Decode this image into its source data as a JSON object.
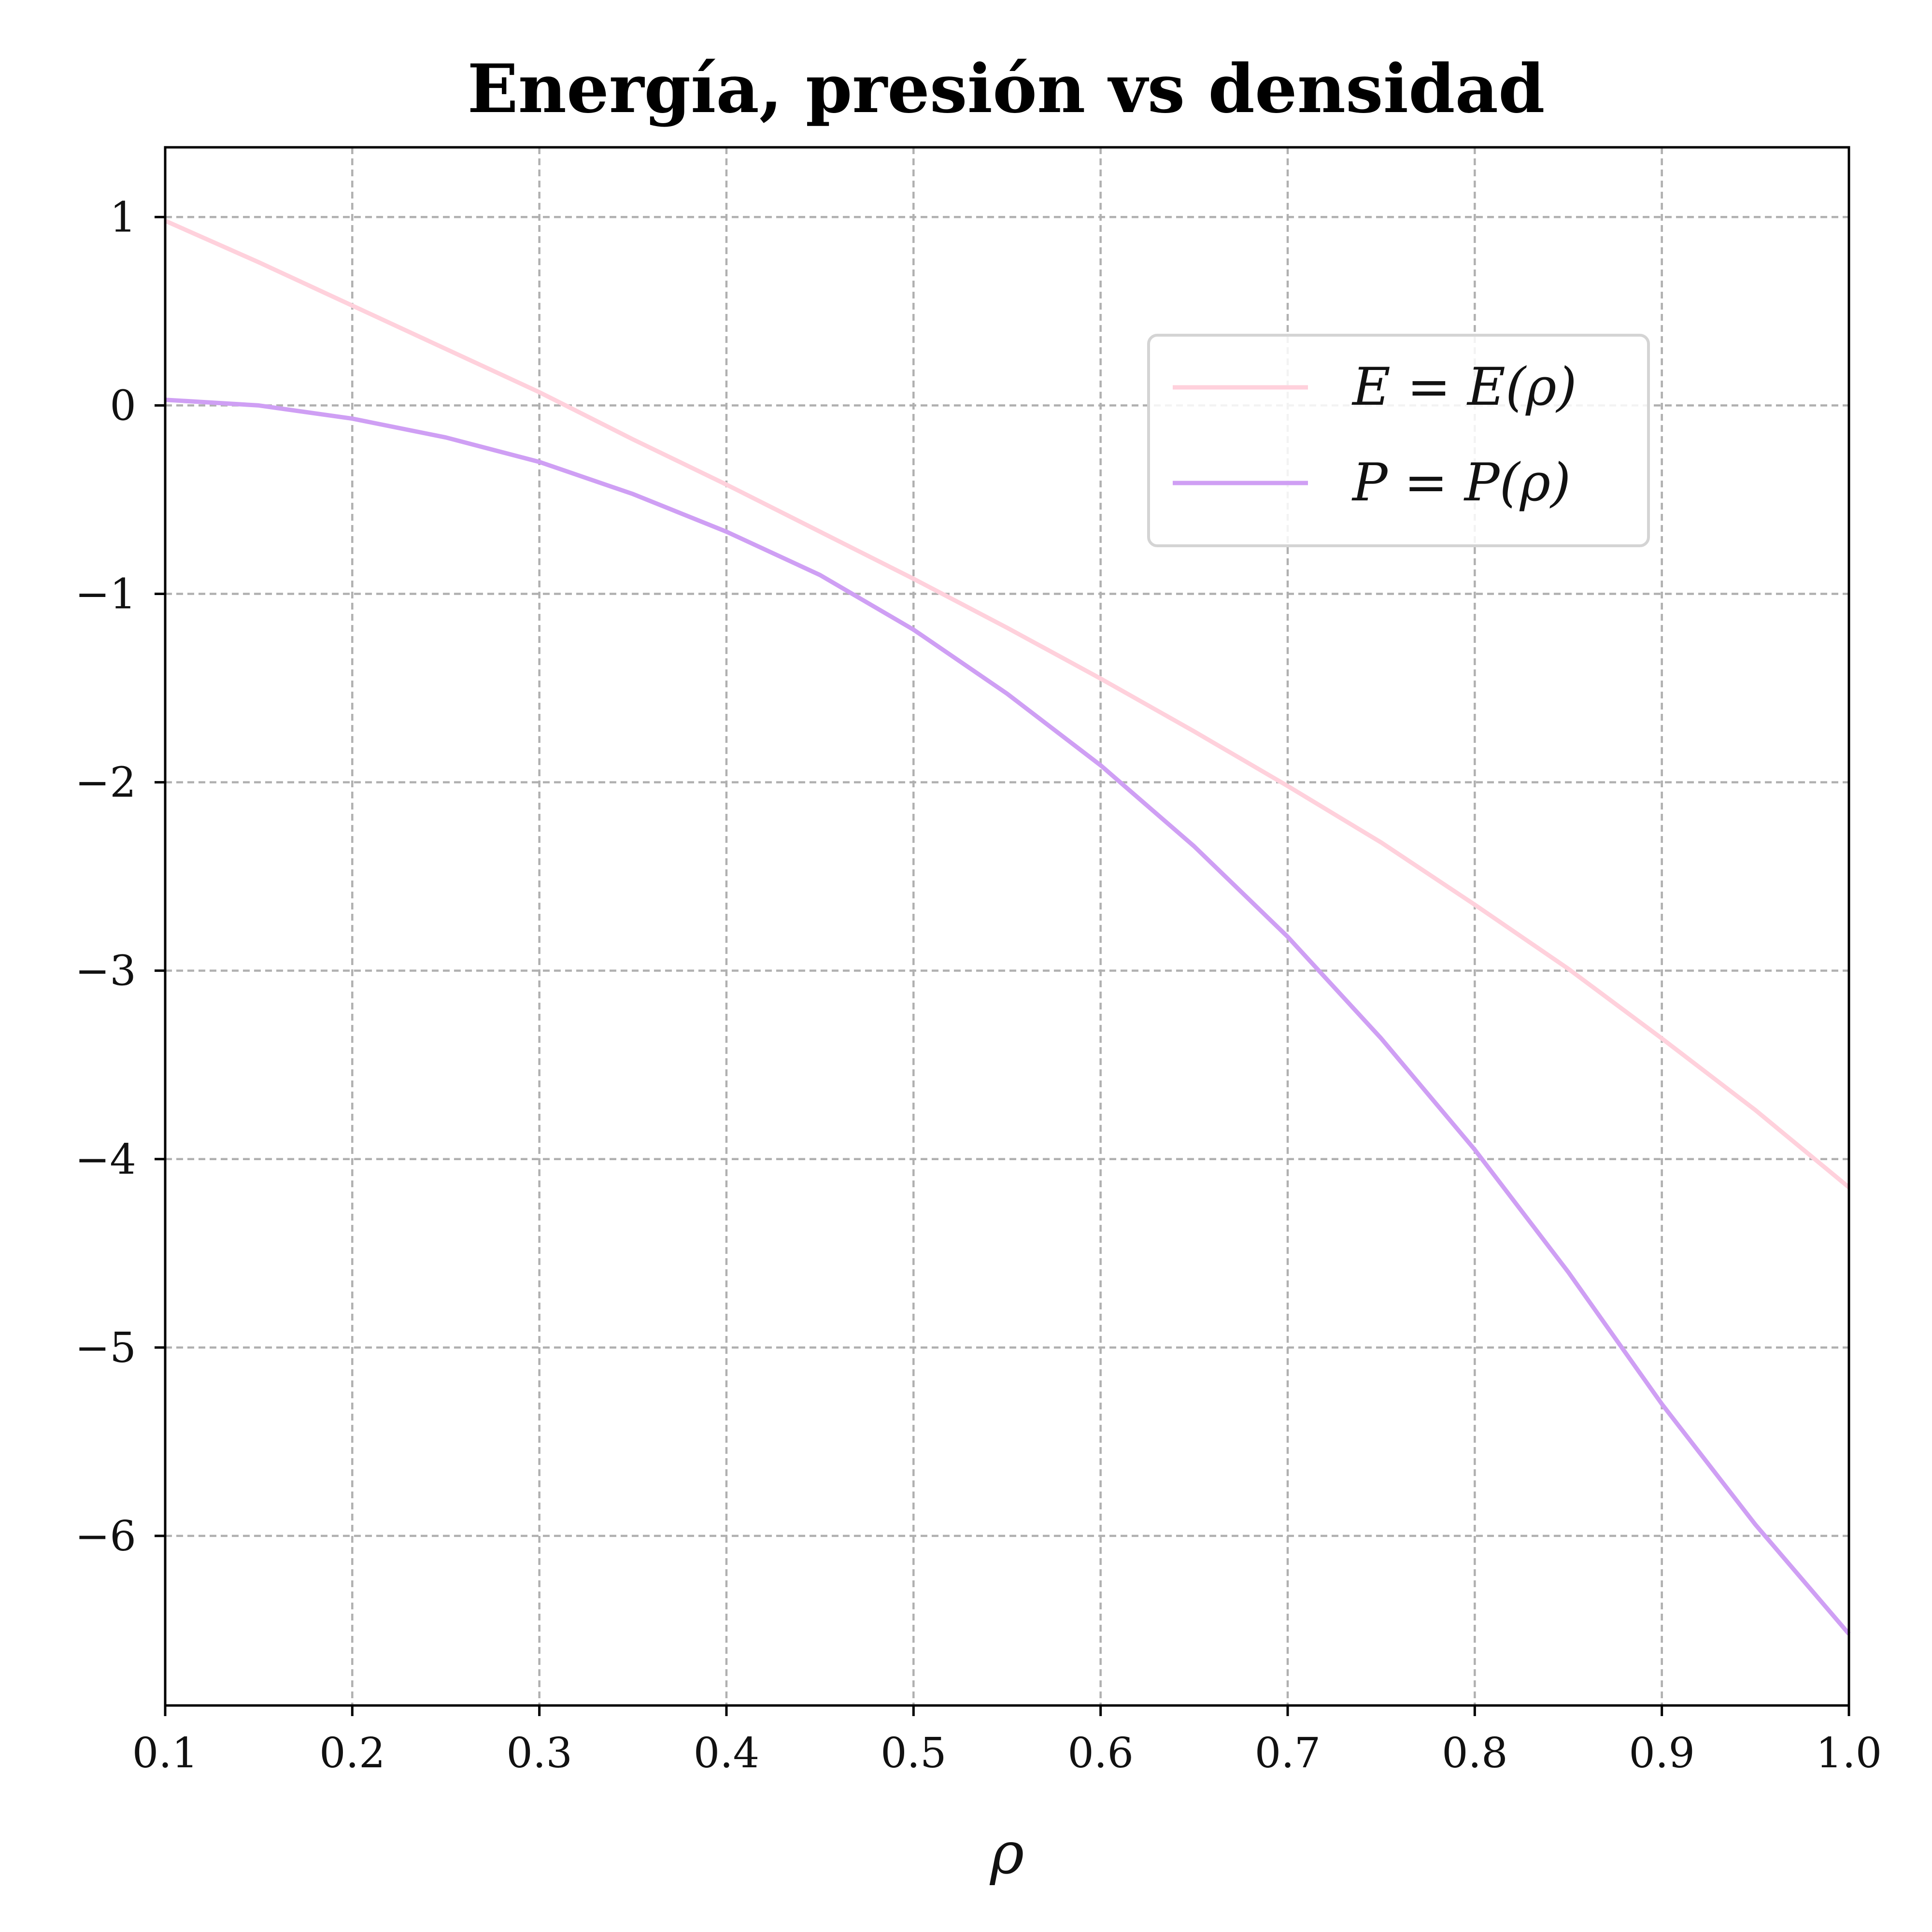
{
  "chart_data": {
    "type": "line",
    "title": "Energía, presión vs densidad",
    "xlabel": "ρ",
    "ylabel": "",
    "xlim": [
      0.1,
      1.0
    ],
    "ylim": [
      -6.9,
      1.37
    ],
    "xticks": [
      0.1,
      0.2,
      0.3,
      0.4,
      0.5,
      0.6,
      0.7,
      0.8,
      0.9,
      1.0
    ],
    "xtick_labels": [
      "0.1",
      "0.2",
      "0.3",
      "0.4",
      "0.5",
      "0.6",
      "0.7",
      "0.8",
      "0.9",
      "1.0"
    ],
    "yticks": [
      1,
      0,
      -1,
      -2,
      -3,
      -4,
      -5,
      -6
    ],
    "ytick_labels": [
      "1",
      "0",
      "−1",
      "−2",
      "−3",
      "−4",
      "−5",
      "−6"
    ],
    "grid": true,
    "legend_position": "upper-right",
    "series": [
      {
        "name": "E = E(ρ)",
        "color": "#ffd1dc",
        "x": [
          0.1,
          0.15,
          0.2,
          0.25,
          0.3,
          0.35,
          0.4,
          0.45,
          0.5,
          0.55,
          0.6,
          0.65,
          0.7,
          0.75,
          0.8,
          0.85,
          0.9,
          0.95,
          1.0
        ],
        "y": [
          0.98,
          0.76,
          0.53,
          0.3,
          0.07,
          -0.18,
          -0.42,
          -0.67,
          -0.92,
          -1.18,
          -1.45,
          -1.73,
          -2.02,
          -2.32,
          -2.65,
          -2.99,
          -3.36,
          -3.74,
          -4.15
        ]
      },
      {
        "name": "P = P(ρ)",
        "color": "#cf9ff4",
        "x": [
          0.1,
          0.15,
          0.2,
          0.25,
          0.3,
          0.35,
          0.4,
          0.45,
          0.5,
          0.55,
          0.6,
          0.65,
          0.7,
          0.75,
          0.8,
          0.85,
          0.9,
          0.95,
          1.0
        ],
        "y": [
          0.03,
          0.0,
          -0.07,
          -0.17,
          -0.3,
          -0.47,
          -0.67,
          -0.9,
          -1.19,
          -1.53,
          -1.91,
          -2.34,
          -2.82,
          -3.36,
          -3.95,
          -4.6,
          -5.3,
          -5.94,
          -6.52
        ]
      }
    ]
  }
}
